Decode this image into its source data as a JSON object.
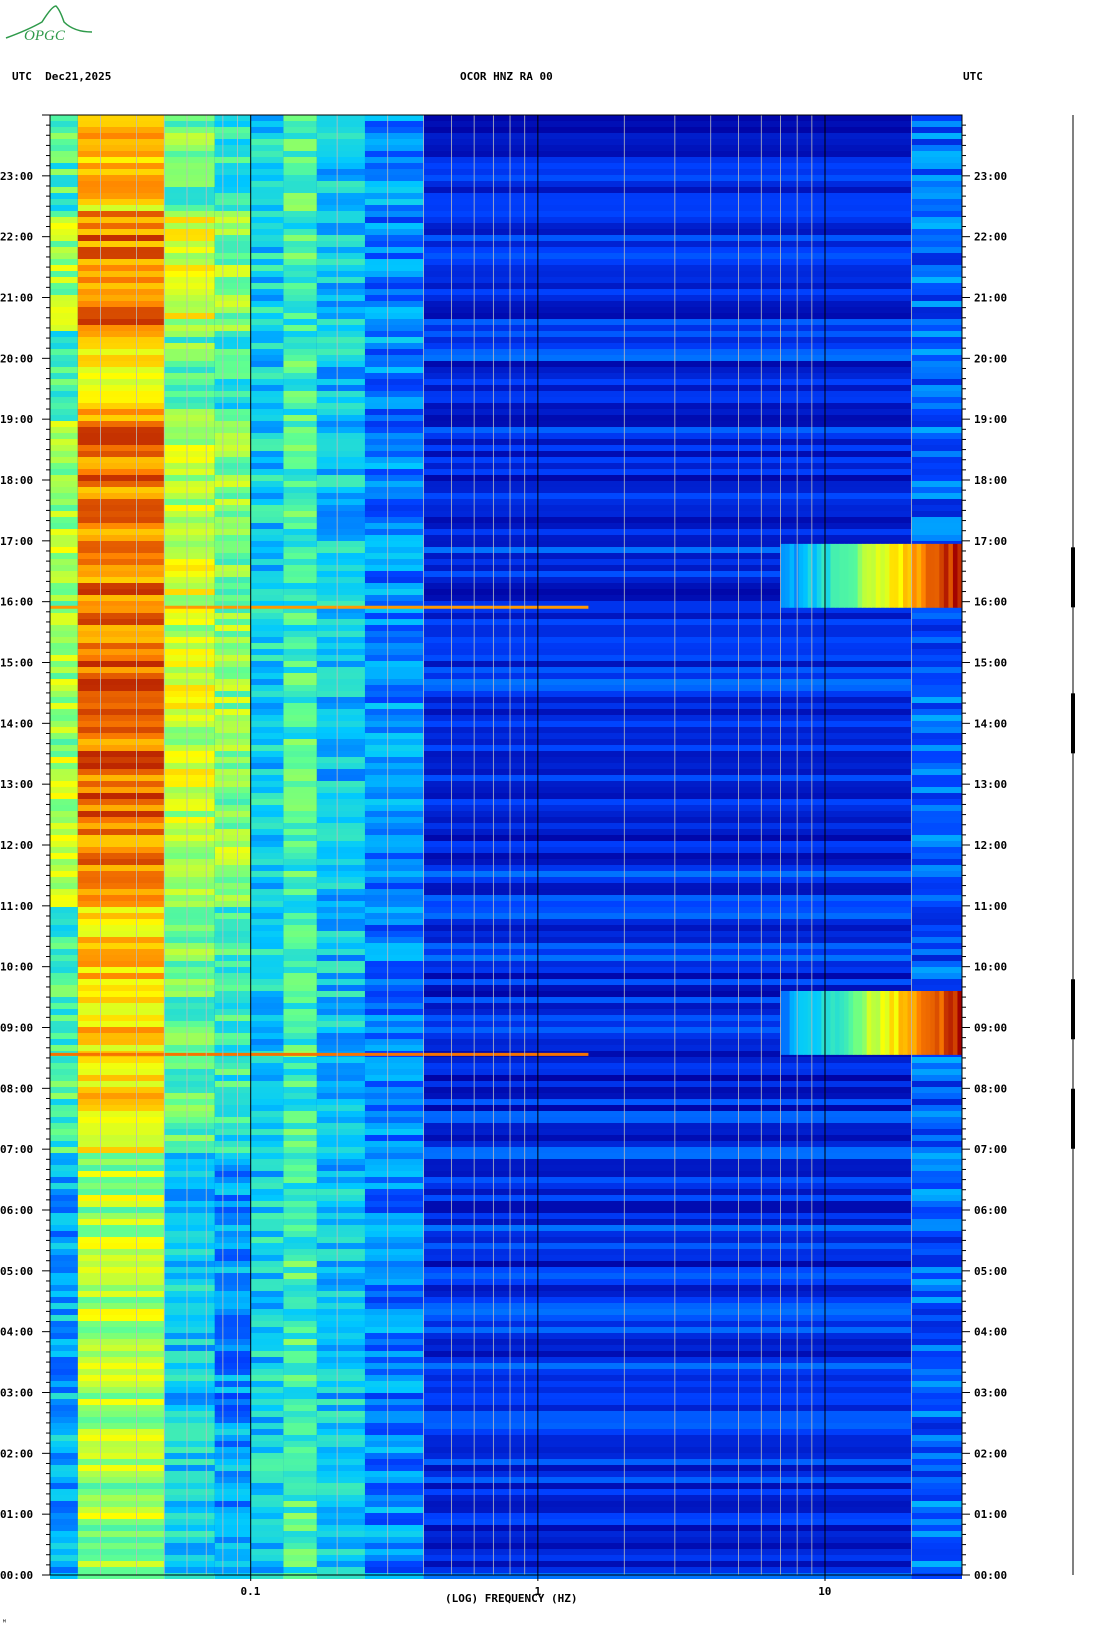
{
  "header": {
    "left": "UTC  Dec21,2025",
    "center": "OCOR HNZ RA 00",
    "right": "UTC"
  },
  "logo": {
    "text": "OPGC",
    "icon": "volcano-logo-icon",
    "color": "#2e9a4a"
  },
  "footer_mark": "ᴹ",
  "chart_data": {
    "type": "heatmap",
    "title": "",
    "xlabel": "(LOG) FREQUENCY (HZ)",
    "ylabel": "",
    "x_scale": "log",
    "xlim": [
      0.02,
      30
    ],
    "ylim_hours": [
      0,
      24
    ],
    "x_tick_labels": [
      {
        "value": 0.1,
        "label": "0.1"
      },
      {
        "value": 1,
        "label": "1"
      },
      {
        "value": 10,
        "label": "10"
      }
    ],
    "y_tick_labels": [
      "00:00",
      "01:00",
      "02:00",
      "03:00",
      "04:00",
      "05:00",
      "06:00",
      "07:00",
      "08:00",
      "09:00",
      "10:00",
      "11:00",
      "12:00",
      "13:00",
      "14:00",
      "15:00",
      "16:00",
      "17:00",
      "18:00",
      "19:00",
      "20:00",
      "21:00",
      "22:00",
      "23:00"
    ],
    "colormap": [
      "#0000a0",
      "#0040ff",
      "#00c8ff",
      "#60ff90",
      "#ffff00",
      "#ff8000",
      "#a00000"
    ],
    "background_intensity": 0.12,
    "intensity_bands": [
      {
        "f_min": 0.02,
        "f_max": 0.025,
        "intensity": 0.45
      },
      {
        "f_min": 0.025,
        "f_max": 0.05,
        "intensity": 0.72
      },
      {
        "f_min": 0.05,
        "f_max": 0.075,
        "intensity": 0.5
      },
      {
        "f_min": 0.075,
        "f_max": 0.1,
        "intensity": 0.42
      },
      {
        "f_min": 0.1,
        "f_max": 0.13,
        "intensity": 0.36
      },
      {
        "f_min": 0.13,
        "f_max": 0.17,
        "intensity": 0.45
      },
      {
        "f_min": 0.17,
        "f_max": 0.25,
        "intensity": 0.34
      },
      {
        "f_min": 0.25,
        "f_max": 0.4,
        "intensity": 0.25
      },
      {
        "f_min": 0.4,
        "f_max": 20,
        "intensity": 0.12
      },
      {
        "f_min": 20,
        "f_max": 30,
        "intensity": 0.2
      }
    ],
    "events": [
      {
        "t_start": 15.9,
        "t_end": 16.95,
        "f_min": 7,
        "f_max": 30,
        "peak_intensity": 1.0
      },
      {
        "t_start": 8.55,
        "t_end": 9.6,
        "f_min": 7,
        "f_max": 30,
        "peak_intensity": 1.0
      }
    ],
    "narrow_lines": [
      {
        "t": 15.9,
        "f_min": 0.02,
        "f_max": 1.5,
        "intensity": 0.8
      },
      {
        "t": 8.55,
        "f_min": 0.02,
        "f_max": 1.5,
        "intensity": 0.85
      }
    ],
    "trace_marks_hours": [
      16.4,
      14.0,
      9.3,
      7.5
    ]
  }
}
